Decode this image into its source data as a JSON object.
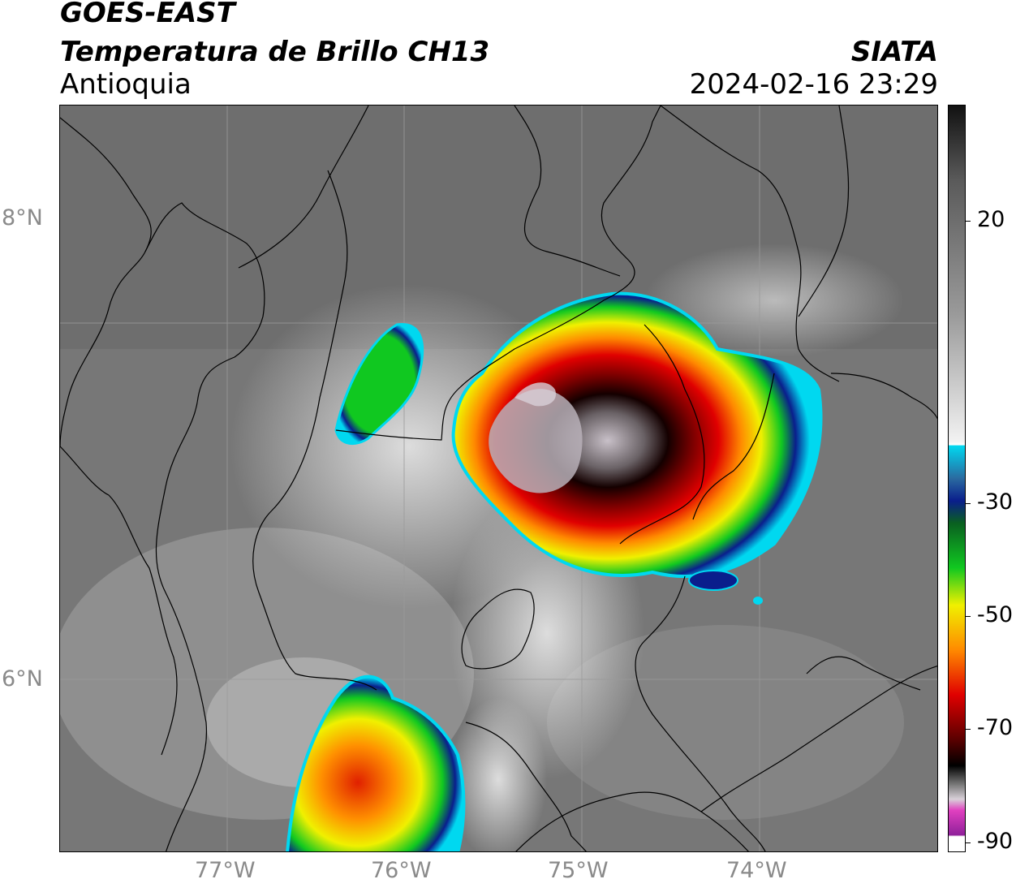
{
  "header": {
    "satellite": "GOES-EAST",
    "product": "Temperatura de Brillo CH13",
    "region": "Antioquia",
    "organization": "SIATA",
    "datetime": "2024-02-16 23:29"
  },
  "map": {
    "lat_labels": [
      "8°N",
      "6°N"
    ],
    "lon_labels": [
      "77°W",
      "76°W",
      "75°W",
      "74°W"
    ]
  },
  "colorbar": {
    "tick_labels": [
      "20",
      "-30",
      "-50",
      "-70",
      "-90"
    ],
    "unit_note": "",
    "colors": {
      "warm_gray_top": "#111111",
      "cloud_white": "#f2f2f2",
      "cyan": "#00d8f0",
      "blue": "#0a1e8c",
      "green": "#10c820",
      "yellow": "#f0f000",
      "orange": "#ff8a00",
      "red": "#e00000",
      "dark_red": "#5a0000",
      "black": "#000000",
      "light_gray_top_cloud": "#d8d0d8",
      "magenta": "#e040c0",
      "purple": "#90209a"
    }
  }
}
